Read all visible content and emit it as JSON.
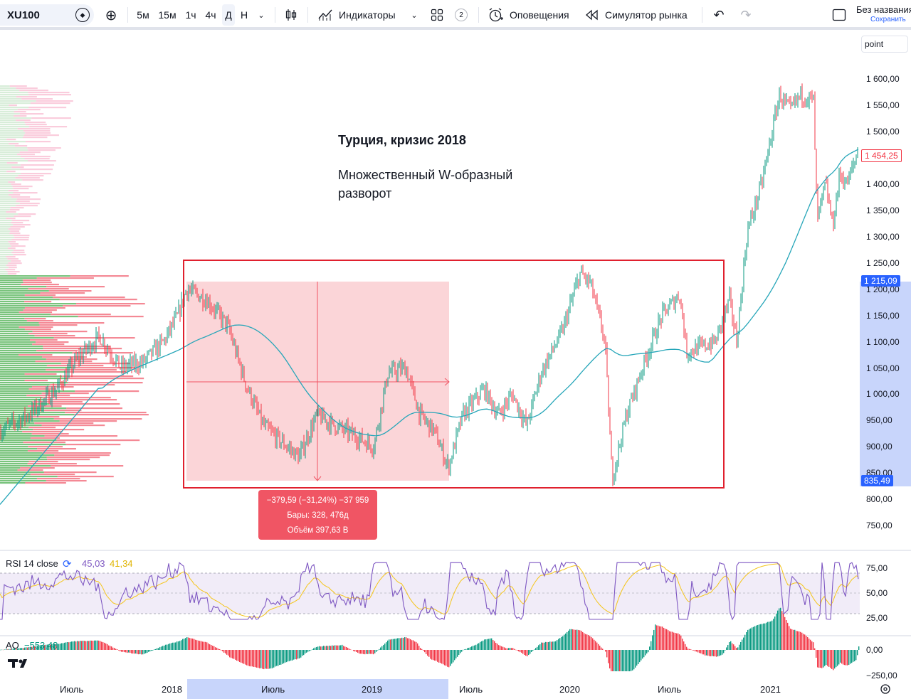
{
  "toolbar": {
    "symbol": "XU100",
    "timeframes": [
      "5м",
      "15м",
      "1ч",
      "4ч",
      "Д",
      "Н"
    ],
    "active_timeframe": "Д",
    "indicators_label": "Индикаторы",
    "layouts_count": "2",
    "alerts_label": "Оповещения",
    "replay_label": "Симулятор рынка",
    "layout_name": "Без названия",
    "save_label": "Сохранить"
  },
  "chart": {
    "scale_mode": "point",
    "price_labels": [
      "1 600,00",
      "1 550,00",
      "1 500,00",
      "1 400,00",
      "1 350,00",
      "1 300,00",
      "1 250,00",
      "1 200,00",
      "1 150,00",
      "1 100,00",
      "1 050,00",
      "1 000,00",
      "950,00",
      "900,00",
      "850,00",
      "800,00",
      "750,00"
    ],
    "last_price_tag": "1 454,25",
    "range_high_tag": "1 215,09",
    "range_low_tag": "835,49",
    "annotation_title": "Турция, кризис 2018",
    "annotation_line1": "Множественный W-образный",
    "annotation_line2": "разворот",
    "measure": {
      "change": "−379,59 (−31,24%) −37 959",
      "bars": "Бары: 328, 476д",
      "volume": "Объём 397,63 B"
    },
    "colors": {
      "up": "#089981",
      "down": "#f23645",
      "ma": "#26a6b9",
      "rect": "#e0202e",
      "measure_fill": "#f7b2b8"
    }
  },
  "rsi": {
    "label": "RSI 14 close",
    "value1": "45,03",
    "value2": "41,34",
    "levels": [
      "75,00",
      "50,00",
      "25,00"
    ],
    "colors": {
      "line": "#7e57c2",
      "ma": "#f5c518"
    }
  },
  "ao": {
    "label": "AO",
    "value": "−553,48",
    "levels": [
      "0,00",
      "−250,00"
    ]
  },
  "time_axis": [
    "Июль",
    "2018",
    "Июль",
    "2019",
    "Июль",
    "2020",
    "Июль",
    "2021"
  ]
}
